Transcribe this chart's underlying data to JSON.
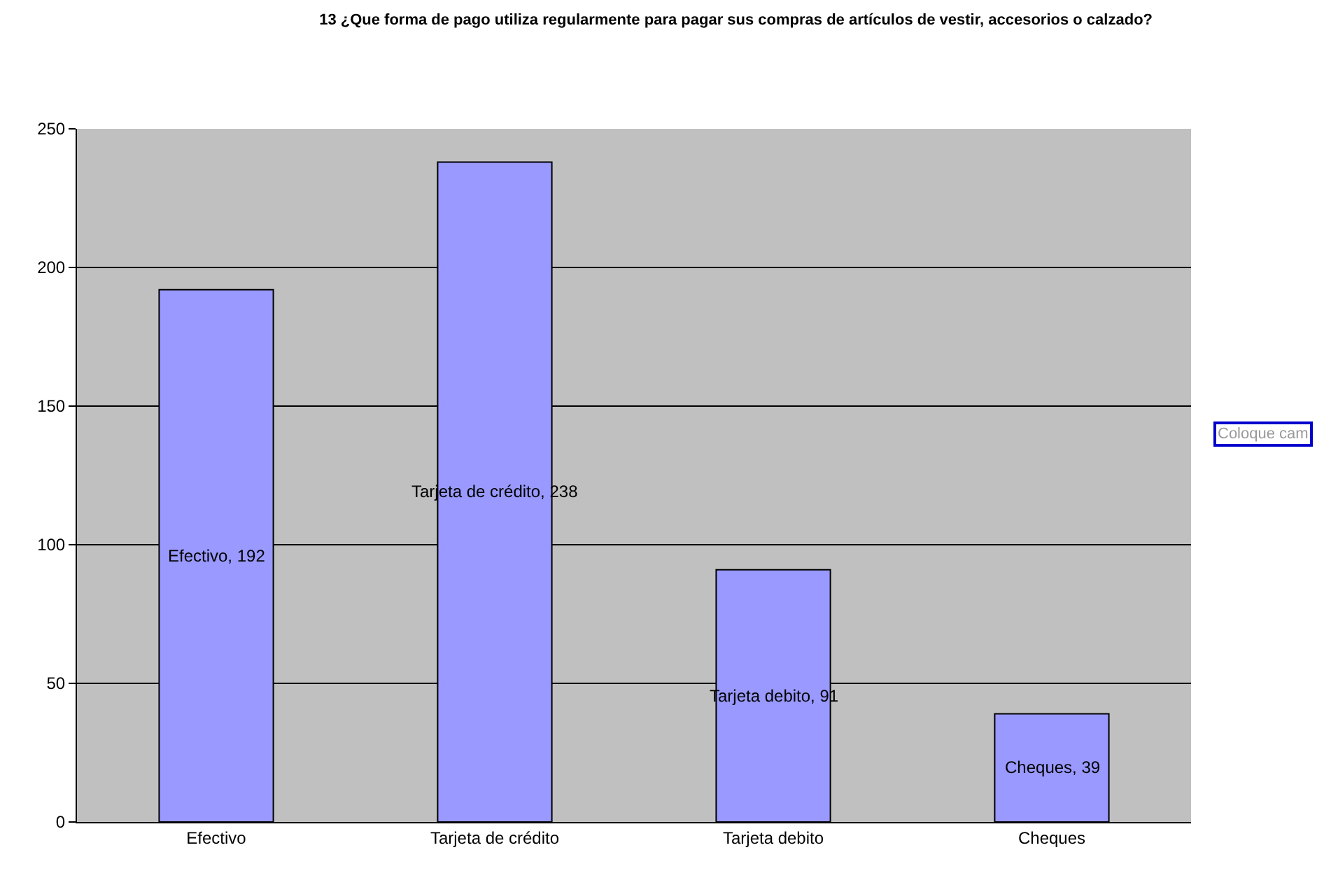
{
  "chart_data": {
    "type": "bar",
    "title": "13 ¿Que forma de pago utiliza regularmente para pagar sus compras de artículos de vestir, accesorios o calzado?",
    "categories": [
      "Efectivo",
      "Tarjeta de crédito",
      "Tarjeta debito",
      "Cheques"
    ],
    "values": [
      192,
      238,
      91,
      39
    ],
    "value_labels": [
      "Efectivo, 192",
      "Tarjeta de crédito, 238",
      "Tarjeta debito, 91",
      "Cheques, 39"
    ],
    "color": "#9999ff",
    "ylim": [
      0,
      250
    ],
    "yticks": [
      0,
      50,
      100,
      150,
      200,
      250
    ],
    "grid": "y",
    "annotations": [
      "Coloque cam"
    ]
  }
}
